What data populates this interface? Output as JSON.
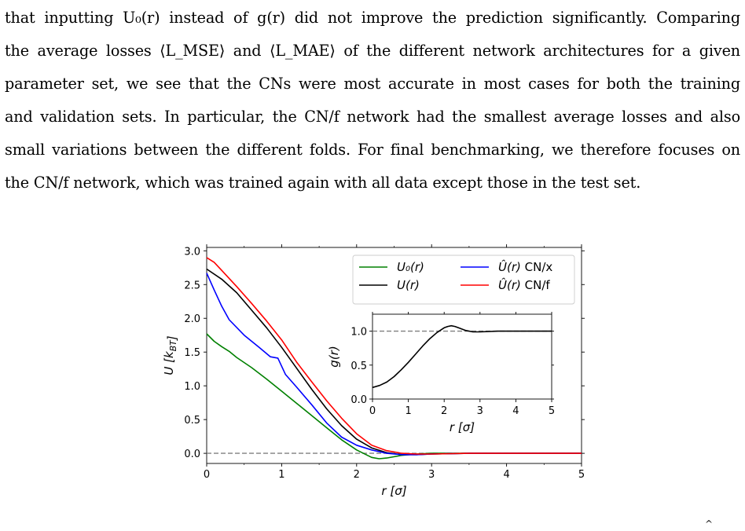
{
  "paragraph": {
    "lines": [
      "that inputting U₀(r) instead of g(r) did not improve the prediction significantly. Comparing",
      "the average losses ⟨L_MSE⟩ and ⟨L_MAE⟩ of the different network architectures for a given",
      "parameter set, we see that the CNs were most accurate in most cases for both the training",
      "and validation sets. In particular, the CN/f network had the smallest average losses and also",
      "small variations between the different folds. For final benchmarking, we therefore focuses on",
      "the CN/f network, which was trained again with all data except those in the test set."
    ]
  },
  "chart_data": [
    {
      "type": "line",
      "xlabel": "r [σ]",
      "ylabel": "U [k_BT]",
      "xlim": [
        0,
        5
      ],
      "ylim": [
        -0.15,
        3.05
      ],
      "xticks": [
        "0",
        "1",
        "2",
        "3",
        "4",
        "5"
      ],
      "yticks": [
        "0.0",
        "0.5",
        "1.0",
        "1.5",
        "2.0",
        "2.5",
        "3.0"
      ],
      "legend_position": "top-right",
      "reference_line": 0.0,
      "series": [
        {
          "name": "U₀(r)",
          "color": "#008000",
          "x": [
            0,
            0.1,
            0.2,
            0.3,
            0.4,
            0.6,
            0.8,
            1.0,
            1.2,
            1.4,
            1.6,
            1.8,
            2.0,
            2.2,
            2.3,
            2.4,
            2.6,
            2.8,
            3.0,
            3.5,
            4.0,
            4.5,
            5.0
          ],
          "y": [
            1.77,
            1.66,
            1.58,
            1.51,
            1.42,
            1.27,
            1.1,
            0.92,
            0.74,
            0.56,
            0.38,
            0.2,
            0.05,
            -0.06,
            -0.08,
            -0.07,
            -0.03,
            -0.01,
            0.0,
            0.0,
            0.0,
            0.0,
            0.0
          ]
        },
        {
          "name": "U(r)",
          "color": "#000000",
          "x": [
            0,
            0.2,
            0.4,
            0.6,
            0.8,
            1.0,
            1.2,
            1.4,
            1.6,
            1.8,
            2.0,
            2.2,
            2.4,
            2.6,
            2.8,
            3.0,
            3.5,
            4.0,
            4.5,
            5.0
          ],
          "y": [
            2.73,
            2.58,
            2.38,
            2.12,
            1.86,
            1.57,
            1.26,
            0.95,
            0.66,
            0.41,
            0.21,
            0.08,
            0.01,
            -0.02,
            -0.02,
            -0.01,
            0.0,
            0.0,
            0.0,
            0.0
          ]
        },
        {
          "name": "Û(r) CN/x",
          "color": "#0000ff",
          "x": [
            0,
            0.1,
            0.2,
            0.3,
            0.5,
            0.7,
            0.85,
            0.95,
            1.05,
            1.2,
            1.4,
            1.6,
            1.8,
            2.0,
            2.2,
            2.4,
            2.6,
            2.8,
            3.0,
            3.5,
            4.0,
            4.5,
            5.0
          ],
          "y": [
            2.67,
            2.42,
            2.18,
            1.98,
            1.75,
            1.57,
            1.43,
            1.41,
            1.17,
            0.98,
            0.72,
            0.45,
            0.24,
            0.12,
            0.05,
            0.0,
            -0.02,
            -0.02,
            -0.01,
            0.0,
            0.0,
            0.0,
            0.0
          ]
        },
        {
          "name": "Û(r) CN/f",
          "color": "#ff0000",
          "x": [
            0,
            0.1,
            0.2,
            0.4,
            0.6,
            0.8,
            1.0,
            1.2,
            1.4,
            1.6,
            1.8,
            2.0,
            2.2,
            2.4,
            2.6,
            2.8,
            3.0,
            3.5,
            4.0,
            4.5,
            5.0
          ],
          "y": [
            2.9,
            2.83,
            2.71,
            2.47,
            2.22,
            1.96,
            1.68,
            1.35,
            1.06,
            0.78,
            0.52,
            0.29,
            0.12,
            0.04,
            0.0,
            -0.01,
            -0.01,
            0.0,
            0.0,
            0.0,
            0.0
          ]
        }
      ]
    },
    {
      "type": "line",
      "xlabel": "r [σ]",
      "ylabel": "g(r)",
      "xlim": [
        0,
        5
      ],
      "ylim": [
        0,
        1.25
      ],
      "xticks": [
        "0",
        "1",
        "2",
        "3",
        "4",
        "5"
      ],
      "yticks": [
        "0.0",
        "0.5",
        "1.0"
      ],
      "reference_line": 1.0,
      "series": [
        {
          "name": "g(r)",
          "color": "#000000",
          "x": [
            0,
            0.2,
            0.4,
            0.6,
            0.8,
            1.0,
            1.2,
            1.4,
            1.6,
            1.8,
            2.0,
            2.1,
            2.2,
            2.3,
            2.4,
            2.6,
            2.8,
            3.0,
            3.5,
            4.0,
            4.5,
            5.0
          ],
          "y": [
            0.17,
            0.2,
            0.25,
            0.33,
            0.43,
            0.54,
            0.66,
            0.78,
            0.89,
            0.98,
            1.05,
            1.07,
            1.08,
            1.07,
            1.05,
            1.01,
            0.99,
            0.99,
            1.0,
            1.0,
            1.0,
            1.0
          ]
        }
      ]
    }
  ],
  "footer": {
    "hat_mark": "^"
  }
}
